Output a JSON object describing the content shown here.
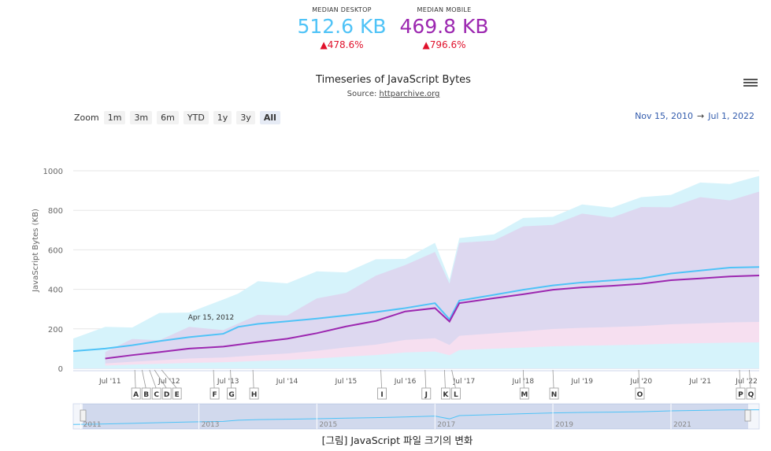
{
  "kpis": [
    {
      "title": "MEDIAN DESKTOP",
      "value": "512.6 KB",
      "change": "▲478.6%",
      "color": "#4fc3f7"
    },
    {
      "title": "MEDIAN MOBILE",
      "value": "469.8 KB",
      "change": "▲796.6%",
      "color": "#9c27b0"
    }
  ],
  "title": "Timeseries of JavaScript Bytes",
  "subtitle_prefix": "Source: ",
  "subtitle_link": "httparchive.org",
  "zoom": {
    "label": "Zoom",
    "buttons": [
      "1m",
      "3m",
      "6m",
      "YTD",
      "1y",
      "3y",
      "All"
    ],
    "active": "All"
  },
  "range": {
    "from": "Nov 15, 2010",
    "arrow": "→",
    "to": "Jul 1, 2022"
  },
  "caption": "[그림] JavaScript 파일 크기의 변화",
  "chart_data": {
    "type": "area",
    "ylabel": "JavaScript Bytes (KB)",
    "ylim": [
      0,
      1000
    ],
    "y_ticks": [
      0,
      200,
      400,
      600,
      800,
      1000
    ],
    "xlim": [
      "2010-11-15",
      "2022-07-01"
    ],
    "x_tick_labels": [
      "Jul '11",
      "Jul '12",
      "Jul '13",
      "Jul '14",
      "Jul '15",
      "Jul '16",
      "Jul '17",
      "Jul '18",
      "Jul '19",
      "Jul '20",
      "Jul '21",
      "Jul '22"
    ],
    "navigator_labels": [
      "2011",
      "2013",
      "2015",
      "2017",
      "2019",
      "2021"
    ],
    "tooltip_label": "Apr 15, 2012",
    "colors": {
      "desktop": "#4fc3f7",
      "mobile": "#9c27b0",
      "desktop_band": "#d6f3fb",
      "mobile_band": "#ddd8f0",
      "low_band": "#f6dff0"
    },
    "series": [
      {
        "name": "Desktop",
        "color": "#4fc3f7",
        "points": [
          [
            "2010-11-15",
            87
          ],
          [
            "2011-06-01",
            100
          ],
          [
            "2011-11-15",
            117
          ],
          [
            "2012-05-01",
            138
          ],
          [
            "2012-11-01",
            158
          ],
          [
            "2013-06-01",
            175
          ],
          [
            "2013-09-01",
            210
          ],
          [
            "2014-01-01",
            225
          ],
          [
            "2014-07-01",
            238
          ],
          [
            "2015-01-01",
            252
          ],
          [
            "2015-07-01",
            268
          ],
          [
            "2016-01-01",
            285
          ],
          [
            "2016-07-01",
            305
          ],
          [
            "2017-01-01",
            330
          ],
          [
            "2017-04-01",
            248
          ],
          [
            "2017-06-01",
            343
          ],
          [
            "2018-01-01",
            372
          ],
          [
            "2018-07-01",
            398
          ],
          [
            "2019-01-01",
            420
          ],
          [
            "2019-07-01",
            435
          ],
          [
            "2020-01-01",
            445
          ],
          [
            "2020-07-01",
            455
          ],
          [
            "2021-01-01",
            480
          ],
          [
            "2021-07-01",
            495
          ],
          [
            "2022-01-01",
            510
          ],
          [
            "2022-07-01",
            513
          ]
        ]
      },
      {
        "name": "Mobile",
        "color": "#9c27b0",
        "points": [
          [
            "2011-06-01",
            50
          ],
          [
            "2011-11-15",
            67
          ],
          [
            "2012-05-01",
            82
          ],
          [
            "2012-11-01",
            100
          ],
          [
            "2013-06-01",
            110
          ],
          [
            "2014-01-01",
            133
          ],
          [
            "2014-07-01",
            150
          ],
          [
            "2015-01-01",
            178
          ],
          [
            "2015-07-01",
            212
          ],
          [
            "2016-01-01",
            240
          ],
          [
            "2016-07-01",
            288
          ],
          [
            "2017-01-01",
            305
          ],
          [
            "2017-04-01",
            237
          ],
          [
            "2017-06-01",
            330
          ],
          [
            "2018-01-01",
            355
          ],
          [
            "2018-07-01",
            375
          ],
          [
            "2019-01-01",
            398
          ],
          [
            "2019-07-01",
            410
          ],
          [
            "2020-01-01",
            418
          ],
          [
            "2020-07-01",
            428
          ],
          [
            "2021-01-01",
            446
          ],
          [
            "2021-07-01",
            455
          ],
          [
            "2022-01-01",
            465
          ],
          [
            "2022-07-01",
            470
          ]
        ]
      }
    ],
    "annotations": [
      {
        "letter": "A",
        "date": "2011-12-01"
      },
      {
        "letter": "B",
        "date": "2012-01-15"
      },
      {
        "letter": "C",
        "date": "2012-03-01"
      },
      {
        "letter": "D",
        "date": "2012-04-01"
      },
      {
        "letter": "E",
        "date": "2012-05-15"
      },
      {
        "letter": "F",
        "date": "2013-04-01"
      },
      {
        "letter": "G",
        "date": "2013-07-15"
      },
      {
        "letter": "H",
        "date": "2013-12-01"
      },
      {
        "letter": "I",
        "date": "2016-02-01"
      },
      {
        "letter": "J",
        "date": "2016-11-01"
      },
      {
        "letter": "K",
        "date": "2017-03-01"
      },
      {
        "letter": "L",
        "date": "2017-04-15"
      },
      {
        "letter": "M",
        "date": "2018-07-01"
      },
      {
        "letter": "N",
        "date": "2019-01-01"
      },
      {
        "letter": "O",
        "date": "2020-06-15"
      },
      {
        "letter": "P",
        "date": "2022-03-01"
      },
      {
        "letter": "Q",
        "date": "2022-05-01"
      }
    ]
  }
}
